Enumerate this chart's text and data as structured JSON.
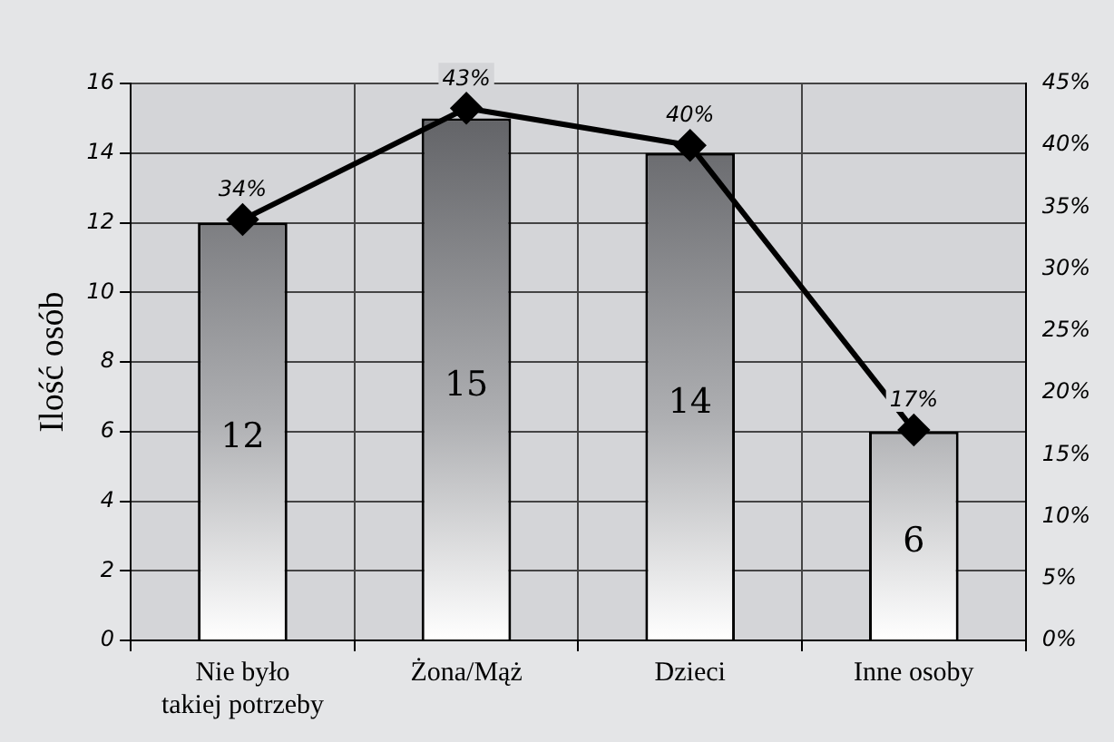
{
  "chart_data": {
    "type": "bar",
    "ylabel": "Ilość osób",
    "categories": [
      "Nie było\ntakiej potrzeby",
      "Żona/Mąż",
      "Dzieci",
      "Inne osoby"
    ],
    "series": [
      {
        "color": "#5a5b5f",
        "values": [
          12,
          15,
          14,
          6
        ],
        "value_labels": [
          "12",
          "15",
          "14",
          "6"
        ]
      },
      {
        "type": "line",
        "axis": "y2",
        "color": "#000000",
        "values": [
          34,
          43,
          40,
          17
        ],
        "value_labels": [
          "34%",
          "43%",
          "40%",
          "17%"
        ]
      }
    ],
    "ylim": [
      0,
      16
    ],
    "yticks": [
      0,
      2,
      4,
      6,
      8,
      10,
      12,
      14,
      16
    ],
    "y2lim": [
      0,
      45
    ],
    "y2ticks": [
      {
        "value": 0,
        "label": "0%"
      },
      {
        "value": 5,
        "label": "5%"
      },
      {
        "value": 10,
        "label": "10%"
      },
      {
        "value": 15,
        "label": "15%"
      },
      {
        "value": 20,
        "label": "20%"
      },
      {
        "value": 25,
        "label": "25%"
      },
      {
        "value": 30,
        "label": "30%"
      },
      {
        "value": 35,
        "label": "35%"
      },
      {
        "value": 40,
        "label": "40%"
      },
      {
        "value": 45,
        "label": "45%"
      }
    ],
    "grid": true,
    "legend": false,
    "marker": "diamond",
    "line_style": "solid"
  }
}
